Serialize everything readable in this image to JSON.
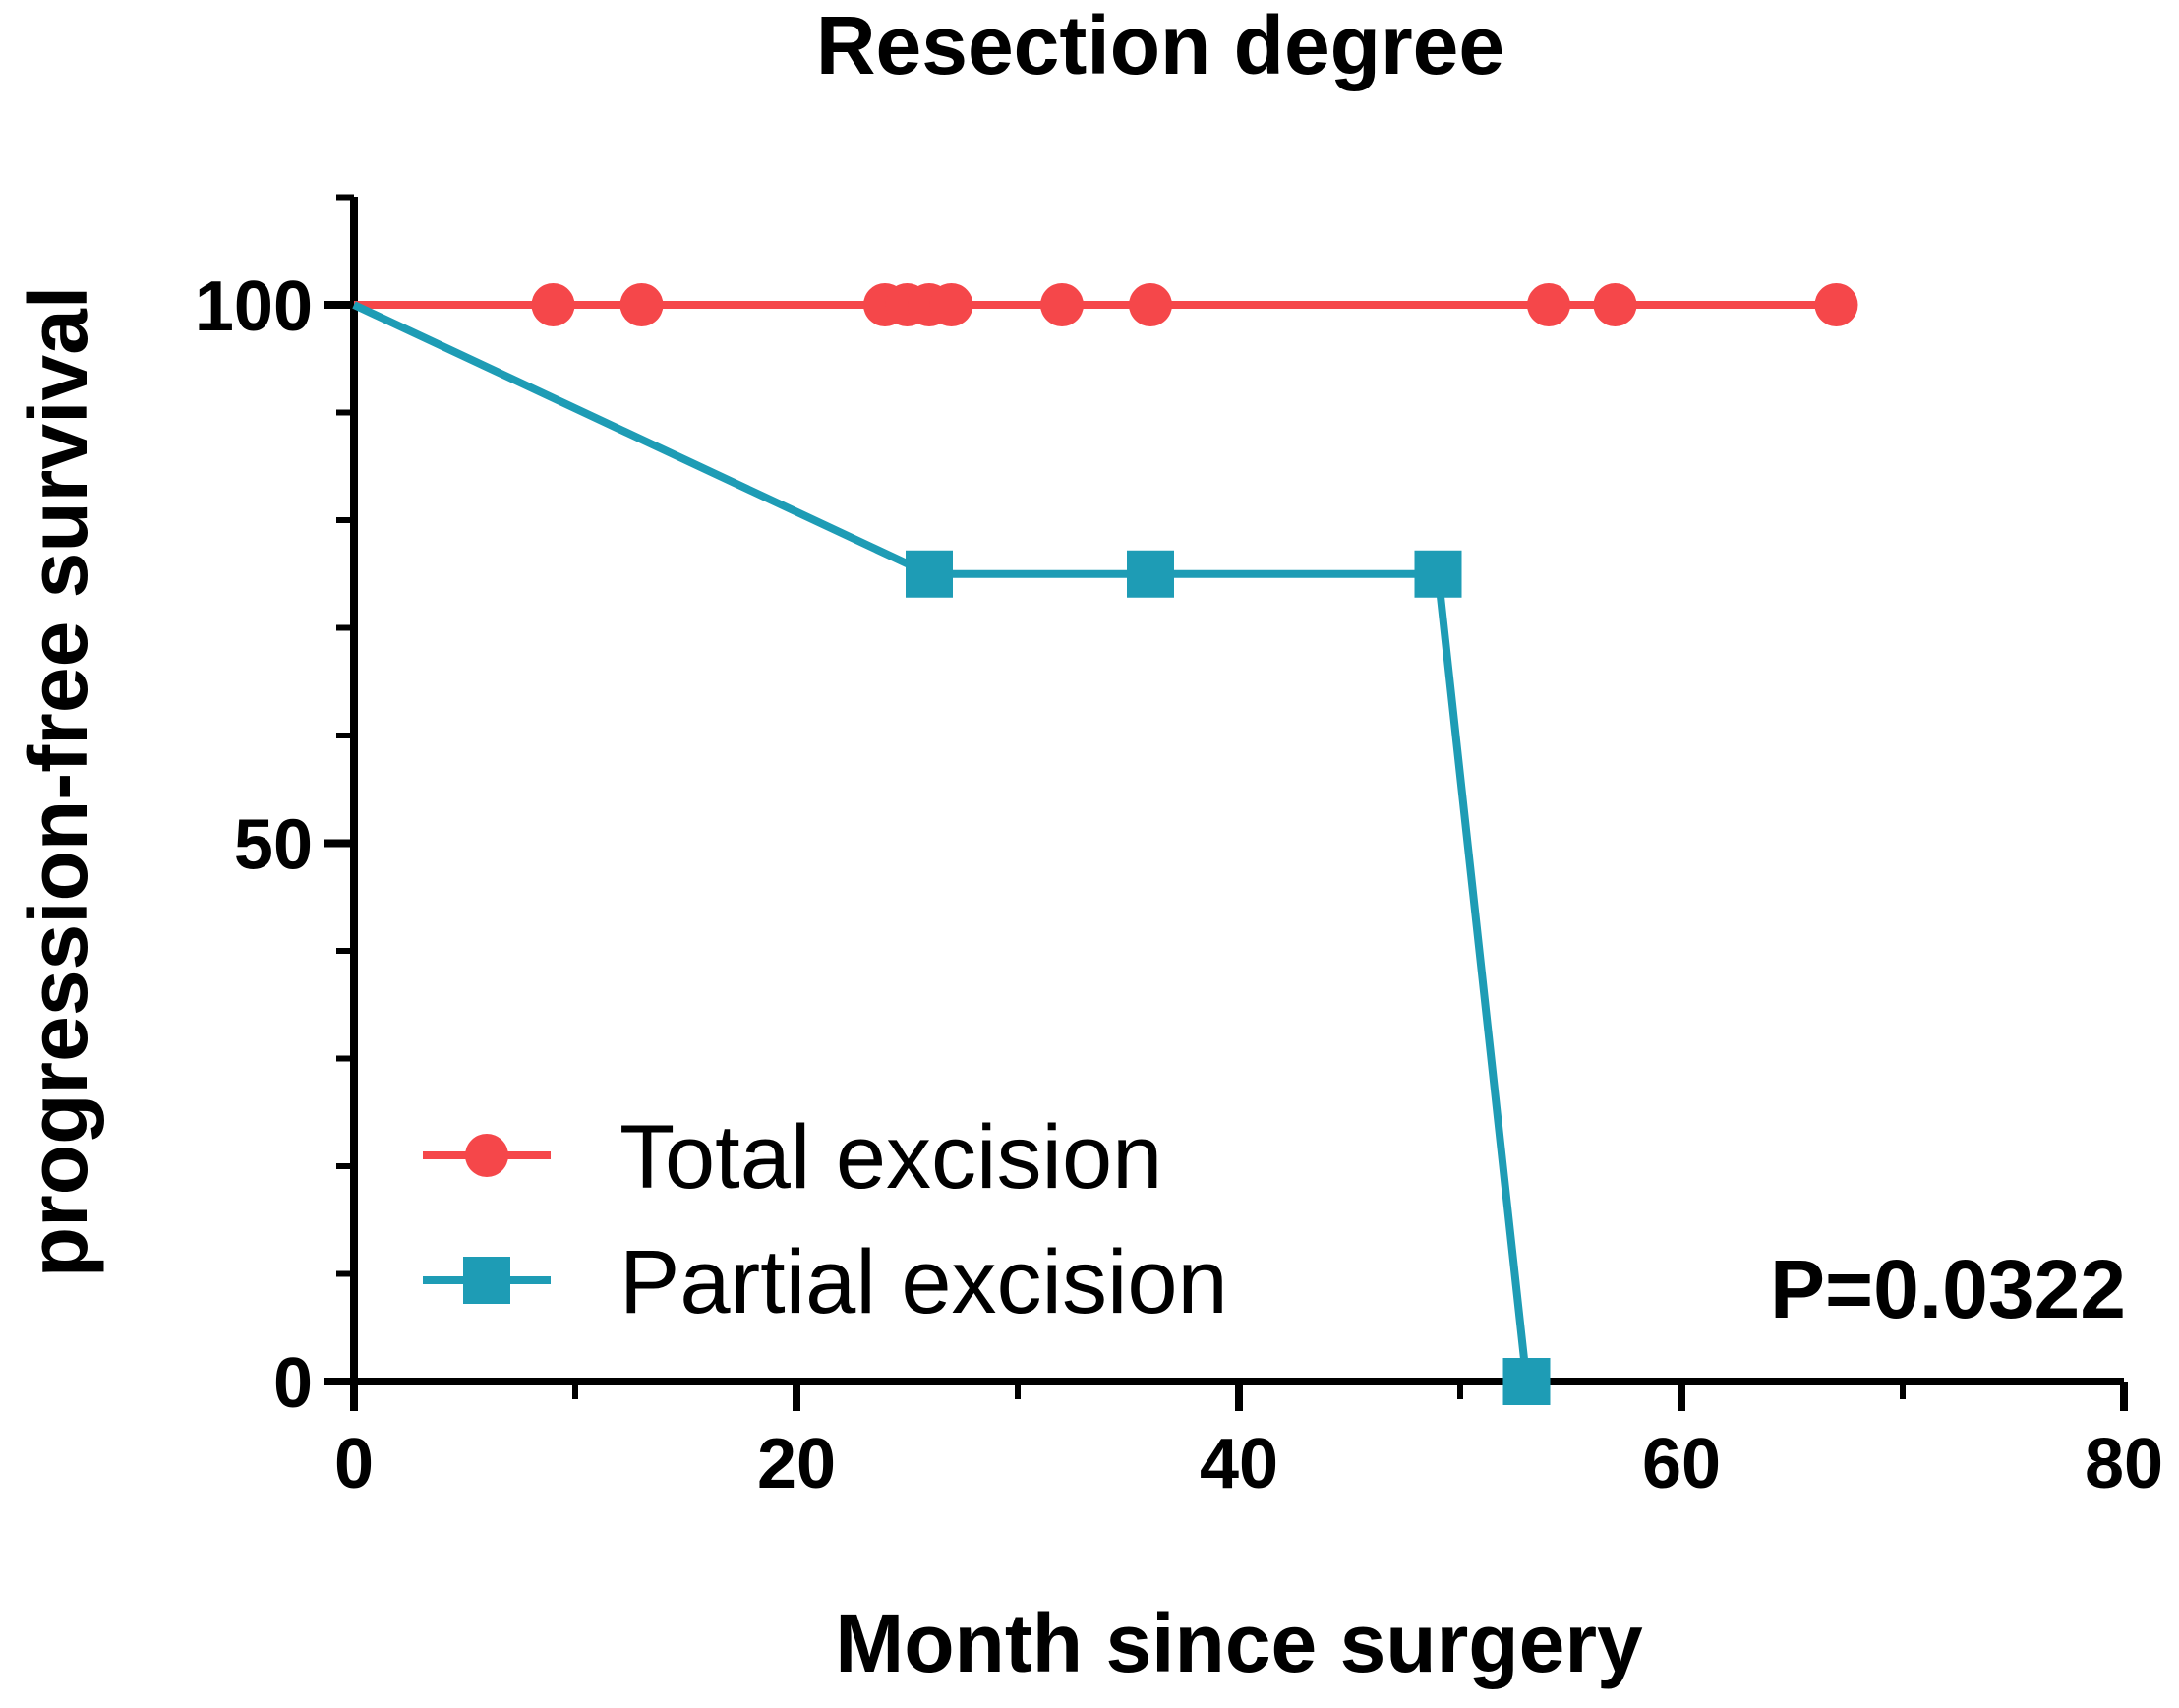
{
  "chart_data": {
    "type": "line",
    "title": "Resection degree",
    "xlabel": "Month since surgery",
    "ylabel": "progression-free survival",
    "xlim": [
      0,
      80
    ],
    "ylim": [
      0,
      110
    ],
    "x_ticks": [
      0,
      20,
      40,
      60,
      80
    ],
    "x_tick_labels": [
      "0",
      "20",
      "40",
      "60",
      "80"
    ],
    "y_ticks": [
      0,
      50,
      100
    ],
    "y_tick_labels": [
      "0",
      "50",
      "100"
    ],
    "y_minor_step": 10,
    "x_minor_step": 10,
    "grid": false,
    "legend_position": "bottom-left",
    "annotation": "P=0.0322",
    "series": [
      {
        "name": "Total excision",
        "color": "#f5474a",
        "marker": "circle",
        "x": [
          0,
          67
        ],
        "y": [
          100,
          100
        ],
        "markers_x": [
          9,
          13,
          24,
          25,
          26,
          27,
          32,
          36,
          54,
          57,
          67
        ],
        "markers_y": [
          100,
          100,
          100,
          100,
          100,
          100,
          100,
          100,
          100,
          100,
          100
        ]
      },
      {
        "name": "Partial excision",
        "color": "#1e9cb5",
        "marker": "square",
        "x": [
          0,
          26,
          49,
          53
        ],
        "y": [
          100,
          75,
          75,
          0
        ],
        "markers_x": [
          26,
          36,
          49,
          53
        ],
        "markers_y": [
          75,
          75,
          75,
          0
        ]
      }
    ]
  }
}
